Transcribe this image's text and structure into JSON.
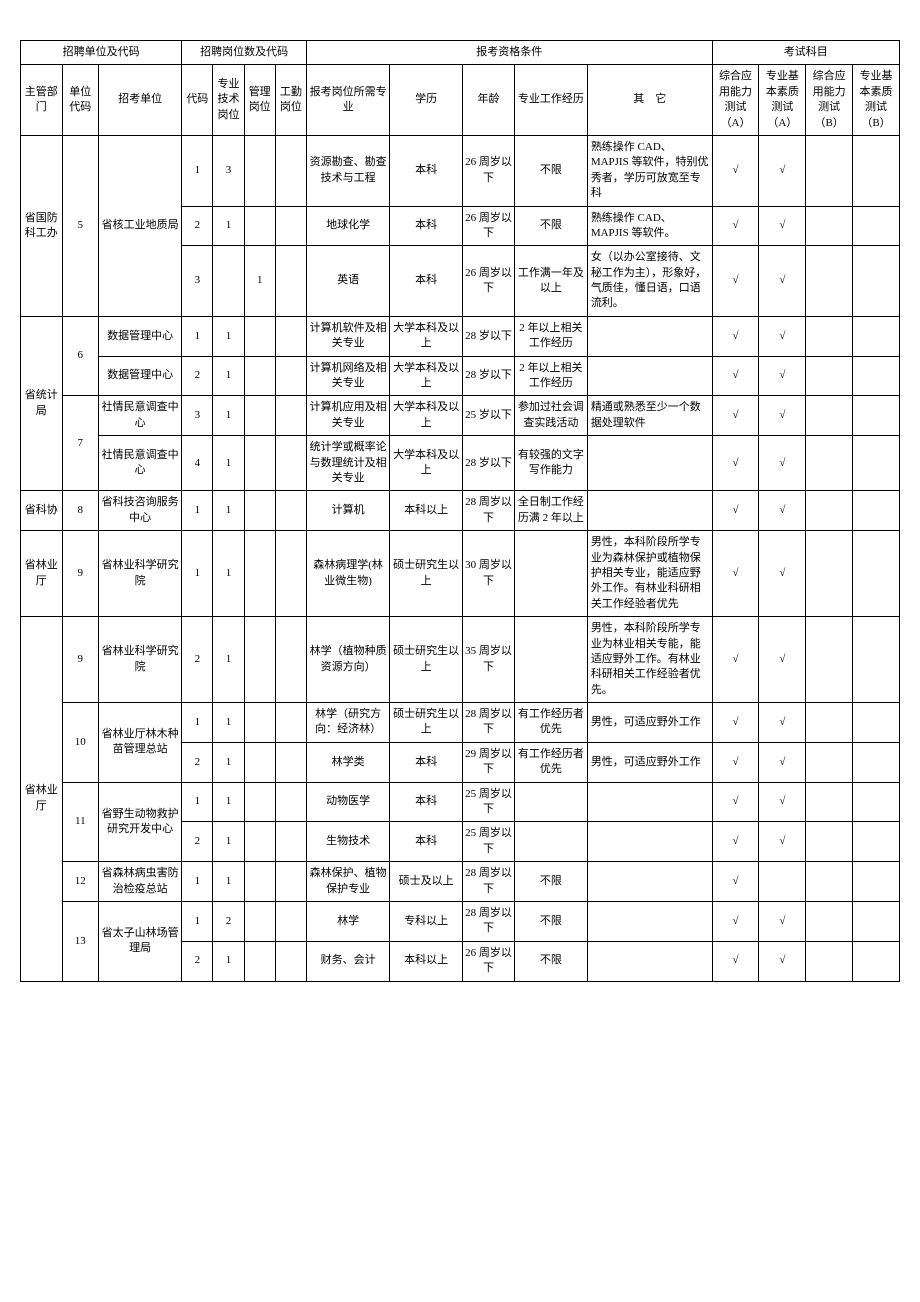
{
  "headers": {
    "g1": "招聘单位及代码",
    "g2": "招聘岗位数及代码",
    "g3": "报考资格条件",
    "g4": "考试科目",
    "dept": "主管部门",
    "ucode": "单位代码",
    "unit": "招考单位",
    "code": "代码",
    "pos1": "专业技术岗位",
    "pos2": "管理岗位",
    "pos3": "工勤岗位",
    "major": "报考岗位所需专业",
    "edu": "学历",
    "age": "年龄",
    "exp": "专业工作经历",
    "other": "其　它",
    "testA1": "综合应用能力测试（A）",
    "testA2": "专业基本素质测试（A）",
    "testB1": "综合应用能力测试（B）",
    "testB2": "专业基本素质测试（B）"
  },
  "check": "√",
  "rows": [
    {
      "dept": "省国防科工办",
      "deptSpan": 3,
      "ucode": "5",
      "ucodeSpan": 3,
      "unit": "省核工业地质局",
      "unitSpan": 3,
      "code": "1",
      "p1": "3",
      "p2": "",
      "p3": "",
      "major": "资源勘查、勘查技术与工程",
      "edu": "本科",
      "age": "26 周岁以下",
      "exp": "不限",
      "other": "熟练操作 CAD、MAPJIS 等软件，特别优秀者，学历可放宽至专科",
      "tA1": true,
      "tA2": true,
      "tB1": false,
      "tB2": false
    },
    {
      "code": "2",
      "p1": "1",
      "p2": "",
      "p3": "",
      "major": "地球化学",
      "edu": "本科",
      "age": "26 周岁以下",
      "exp": "不限",
      "other": "熟练操作 CAD、MAPJIS 等软件。",
      "tA1": true,
      "tA2": true,
      "tB1": false,
      "tB2": false
    },
    {
      "code": "3",
      "p1": "",
      "p2": "1",
      "p3": "",
      "major": "英语",
      "edu": "本科",
      "age": "26 周岁以下",
      "exp": "工作满一年及以上",
      "other": "女（以办公室接待、文秘工作为主），形象好，气质佳，懂日语，口语流利。",
      "tA1": true,
      "tA2": true,
      "tB1": false,
      "tB2": false
    },
    {
      "dept": "省统计局",
      "deptSpan": 4,
      "ucode": "6",
      "ucodeSpan": 2,
      "unit": "数据管理中心",
      "unitSpan": 1,
      "code": "1",
      "p1": "1",
      "p2": "",
      "p3": "",
      "major": "计算机软件及相关专业",
      "edu": "大学本科及以上",
      "age": "28 岁以下",
      "exp": "2 年以上相关工作经历",
      "other": "",
      "tA1": true,
      "tA2": true,
      "tB1": false,
      "tB2": false
    },
    {
      "unit": "数据管理中心",
      "unitSpan": 1,
      "code": "2",
      "p1": "1",
      "p2": "",
      "p3": "",
      "major": "计算机网络及相关专业",
      "edu": "大学本科及以上",
      "age": "28 岁以下",
      "exp": "2 年以上相关工作经历",
      "other": "",
      "tA1": true,
      "tA2": true,
      "tB1": false,
      "tB2": false
    },
    {
      "ucode": "7",
      "ucodeSpan": 2,
      "unit": "社情民意调查中心",
      "unitSpan": 1,
      "code": "3",
      "p1": "1",
      "p2": "",
      "p3": "",
      "major": "计算机应用及相关专业",
      "edu": "大学本科及以上",
      "age": "25 岁以下",
      "exp": "参加过社会调查实践活动",
      "other": "精通或熟悉至少一个数据处理软件",
      "tA1": true,
      "tA2": true,
      "tB1": false,
      "tB2": false
    },
    {
      "unit": "社情民意调查中心",
      "unitSpan": 1,
      "code": "4",
      "p1": "1",
      "p2": "",
      "p3": "",
      "major": "统计学或概率论与数理统计及相关专业",
      "edu": "大学本科及以上",
      "age": "28 岁以下",
      "exp": "有较强的文字写作能力",
      "other": "",
      "tA1": true,
      "tA2": true,
      "tB1": false,
      "tB2": false
    },
    {
      "dept": "省科协",
      "deptSpan": 1,
      "ucode": "8",
      "ucodeSpan": 1,
      "unit": "省科技咨询服务中心",
      "unitSpan": 1,
      "code": "1",
      "p1": "1",
      "p2": "",
      "p3": "",
      "major": "计算机",
      "edu": "本科以上",
      "age": "28 周岁以下",
      "exp": "全日制工作经历满 2 年以上",
      "other": "",
      "tA1": true,
      "tA2": true,
      "tB1": false,
      "tB2": false
    },
    {
      "dept": "省林业厅",
      "deptSpan": 1,
      "ucode": "9",
      "ucodeSpan": 1,
      "unit": "省林业科学研究院",
      "unitSpan": 1,
      "code": "1",
      "p1": "1",
      "p2": "",
      "p3": "",
      "major": "森林病理学(林业微生物)",
      "edu": "硕士研究生以上",
      "age": "30 周岁以下",
      "exp": "",
      "other": "男性，本科阶段所学专业为森林保护或植物保护相关专业，能适应野外工作。有林业科研相关工作经验者优先",
      "tA1": true,
      "tA2": true,
      "tB1": false,
      "tB2": false
    },
    {
      "dept": "省林业厅",
      "deptSpan": 8,
      "ucode": "9",
      "ucodeSpan": 1,
      "unit": "省林业科学研究院",
      "unitSpan": 1,
      "code": "2",
      "p1": "1",
      "p2": "",
      "p3": "",
      "major": "林学（植物种质资源方向）",
      "edu": "硕士研究生以上",
      "age": "35 周岁以下",
      "exp": "",
      "other": "男性，本科阶段所学专业为林业相关专能，能适应野外工作。有林业科研相关工作经验者优先。",
      "tA1": true,
      "tA2": true,
      "tB1": false,
      "tB2": false
    },
    {
      "ucode": "10",
      "ucodeSpan": 2,
      "unit": "省林业厅林木种苗管理总站",
      "unitSpan": 2,
      "code": "1",
      "p1": "1",
      "p2": "",
      "p3": "",
      "major": "林学（研究方向：经济林）",
      "edu": "硕士研究生以上",
      "age": "28 周岁以下",
      "exp": "有工作经历者优先",
      "other": "男性，可适应野外工作",
      "tA1": true,
      "tA2": true,
      "tB1": false,
      "tB2": false
    },
    {
      "code": "2",
      "p1": "1",
      "p2": "",
      "p3": "",
      "major": "林学类",
      "edu": "本科",
      "age": "29 周岁以下",
      "exp": "有工作经历者优先",
      "other": "男性，可适应野外工作",
      "tA1": true,
      "tA2": true,
      "tB1": false,
      "tB2": false
    },
    {
      "ucode": "11",
      "ucodeSpan": 2,
      "unit": "省野生动物救护研究开发中心",
      "unitSpan": 2,
      "code": "1",
      "p1": "1",
      "p2": "",
      "p3": "",
      "major": "动物医学",
      "edu": "本科",
      "age": "25 周岁以下",
      "exp": "",
      "other": "",
      "tA1": true,
      "tA2": true,
      "tB1": false,
      "tB2": false
    },
    {
      "code": "2",
      "p1": "1",
      "p2": "",
      "p3": "",
      "major": "生物技术",
      "edu": "本科",
      "age": "25 周岁以下",
      "exp": "",
      "other": "",
      "tA1": true,
      "tA2": true,
      "tB1": false,
      "tB2": false
    },
    {
      "ucode": "12",
      "ucodeSpan": 1,
      "unit": "省森林病虫害防治检疫总站",
      "unitSpan": 1,
      "code": "1",
      "p1": "1",
      "p2": "",
      "p3": "",
      "major": "森林保护、植物保护专业",
      "edu": "硕士及以上",
      "age": "28 周岁以下",
      "exp": "不限",
      "other": "",
      "tA1": true,
      "tA2": false,
      "tB1": false,
      "tB2": false
    },
    {
      "ucode": "13",
      "ucodeSpan": 2,
      "unit": "省太子山林场管理局",
      "unitSpan": 2,
      "code": "1",
      "p1": "2",
      "p2": "",
      "p3": "",
      "major": "林学",
      "edu": "专科以上",
      "age": "28 周岁以下",
      "exp": "不限",
      "other": "",
      "tA1": true,
      "tA2": true,
      "tB1": false,
      "tB2": false
    },
    {
      "code": "2",
      "p1": "1",
      "p2": "",
      "p3": "",
      "major": "财务、会计",
      "edu": "本科以上",
      "age": "26 周岁以下",
      "exp": "不限",
      "other": "",
      "tA1": true,
      "tA2": true,
      "tB1": false,
      "tB2": false
    }
  ]
}
